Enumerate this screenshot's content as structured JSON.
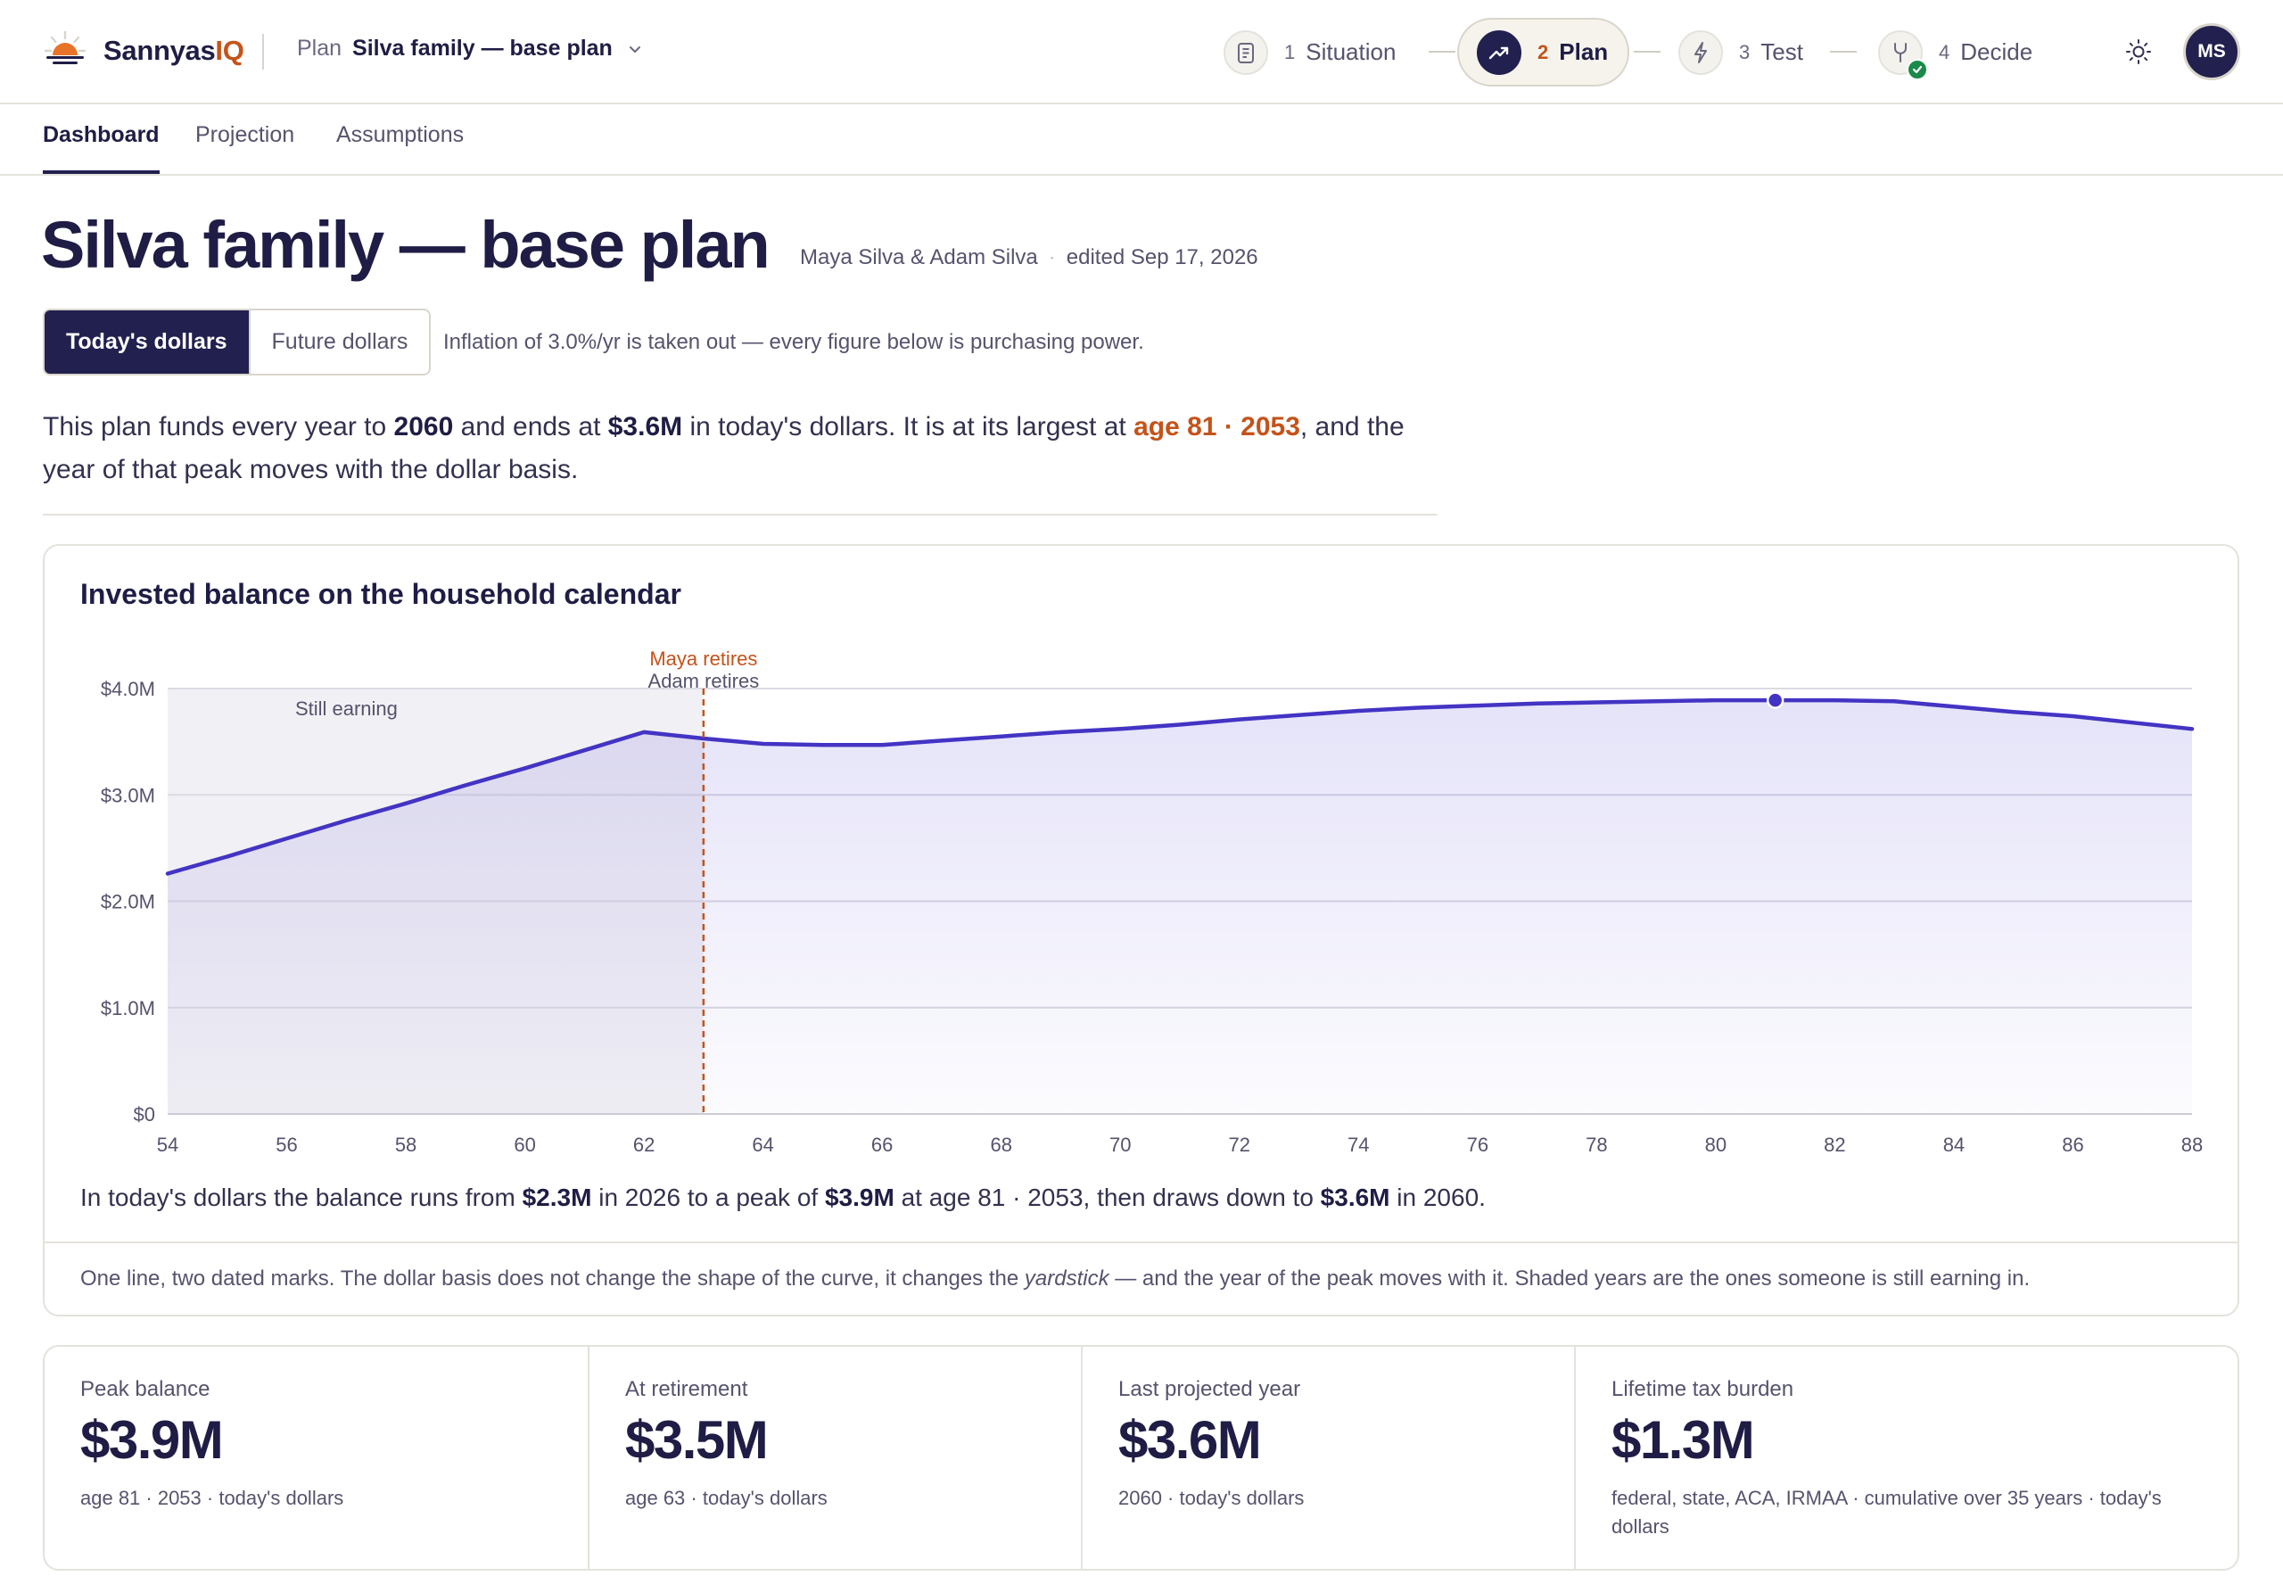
{
  "brand": {
    "name_main": "Sannyas",
    "name_accent": "IQ"
  },
  "plan_select": {
    "label": "Plan",
    "value": "Silva family — base plan"
  },
  "stepper": [
    {
      "num": "1",
      "name": "Situation",
      "icon": "clipboard-icon",
      "state": "default"
    },
    {
      "num": "2",
      "name": "Plan",
      "icon": "trend-up-icon",
      "state": "active"
    },
    {
      "num": "3",
      "name": "Test",
      "icon": "lightning-icon",
      "state": "default"
    },
    {
      "num": "4",
      "name": "Decide",
      "icon": "fork-icon",
      "state": "done"
    }
  ],
  "user": {
    "initials": "MS"
  },
  "tabs": [
    {
      "label": "Dashboard",
      "active": true
    },
    {
      "label": "Projection",
      "active": false
    },
    {
      "label": "Assumptions",
      "active": false
    }
  ],
  "header": {
    "title": "Silva family — base plan",
    "owners": "Maya Silva & Adam Silva",
    "separator": "·",
    "edited": "edited Sep 17, 2026"
  },
  "dollar_toggle": {
    "options": [
      "Today's dollars",
      "Future dollars"
    ],
    "selected": "Today's dollars",
    "note": "Inflation of 3.0%/yr is taken out — every figure below is purchasing power."
  },
  "summary": {
    "t1": "This plan funds every year to ",
    "b1": "2060",
    "t2": " and ends at ",
    "b2": "$3.6M",
    "t3": " in today's dollars. It is at its largest at ",
    "accent": "age 81 · 2053",
    "t4": ", and the year of that peak moves with the dollar basis."
  },
  "chart_card": {
    "title": "Invested balance on the household calendar",
    "caption": {
      "t1": "In today's dollars the balance runs from ",
      "b1": "$2.3M",
      "t2": " in 2026 to a peak of ",
      "b2": "$3.9M",
      "t3": " at age 81 · 2053, then draws down to ",
      "b3": "$3.6M",
      "t4": " in 2060."
    },
    "footnote_a": "One line, two dated marks. The dollar basis does not change the shape of the curve, it changes the ",
    "footnote_em": "yardstick",
    "footnote_b": " — and the year of the peak moves with it. Shaded years are the ones someone is still earning in."
  },
  "chart_data": {
    "type": "area",
    "title": "Invested balance on the household calendar",
    "xlabel": "",
    "ylabel": "",
    "xlim": [
      54,
      88
    ],
    "ylim": [
      0,
      4.0
    ],
    "x_ticks": [
      54,
      56,
      58,
      60,
      62,
      64,
      66,
      68,
      70,
      72,
      74,
      76,
      78,
      80,
      82,
      84,
      86,
      88
    ],
    "y_ticks": [
      0,
      1.0,
      2.0,
      3.0,
      4.0
    ],
    "y_tick_labels": [
      "$0",
      "$1.0M",
      "$2.0M",
      "$3.0M",
      "$4.0M"
    ],
    "grid": true,
    "series": [
      {
        "x": [
          54,
          55,
          56,
          57,
          58,
          59,
          60,
          61,
          62,
          63,
          64,
          65,
          66,
          67,
          68,
          69,
          70,
          71,
          72,
          73,
          74,
          75,
          76,
          77,
          78,
          79,
          80,
          81,
          82,
          83,
          84,
          85,
          86,
          87,
          88
        ],
        "values": [
          2.26,
          2.42,
          2.59,
          2.76,
          2.92,
          3.09,
          3.25,
          3.42,
          3.59,
          3.53,
          3.48,
          3.47,
          3.47,
          3.51,
          3.55,
          3.59,
          3.62,
          3.66,
          3.71,
          3.75,
          3.79,
          3.82,
          3.84,
          3.86,
          3.87,
          3.88,
          3.89,
          3.89,
          3.89,
          3.88,
          3.83,
          3.78,
          3.74,
          3.68,
          3.62
        ],
        "color": "#4334c4"
      }
    ],
    "earning_region": {
      "from": 54,
      "to": 63,
      "label": "Still earning"
    },
    "markers": [
      {
        "x": 63,
        "label_primary": "Maya retires",
        "label_secondary": "Adam retires"
      }
    ],
    "peak": {
      "x": 81,
      "value": 3.89
    }
  },
  "stats": [
    {
      "label": "Peak balance",
      "value": "$3.9M",
      "sub": "age 81 · 2053 · today's dollars"
    },
    {
      "label": "At retirement",
      "value": "$3.5M",
      "sub": "age 63 · today's dollars"
    },
    {
      "label": "Last projected year",
      "value": "$3.6M",
      "sub": "2060 · today's dollars"
    },
    {
      "label": "Lifetime tax burden",
      "value": "$1.3M",
      "sub": "federal, state, ACA, IRMAA · cumulative over 35 years · today's dollars"
    }
  ],
  "colors": {
    "navy": "#22204f",
    "accent": "#c4531a",
    "line": "#4334c4",
    "success": "#1a8a4a"
  }
}
